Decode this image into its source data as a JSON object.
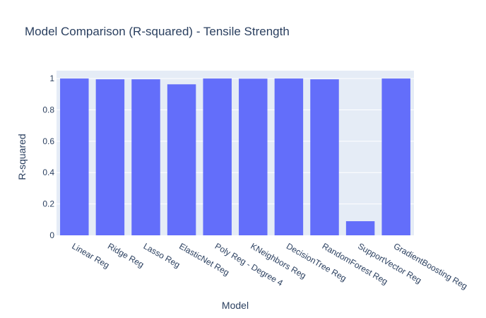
{
  "chart_data": {
    "type": "bar",
    "title": "Model Comparison (R-squared) - Tensile Strength",
    "xlabel": "Model",
    "ylabel": "R-squared",
    "categories": [
      "Linear Reg",
      "Ridge Reg",
      "Lasso Reg",
      "ElasticNet Reg",
      "Poly Reg - Degree 4",
      "KNeighbors Reg",
      "DecisionTree Reg",
      "RandomForest Reg",
      "SupportVector Reg",
      "GradientBoosting Reg"
    ],
    "values": [
      1.0,
      0.995,
      0.995,
      0.963,
      1.0,
      0.999,
      1.0,
      0.995,
      0.09,
      1.0
    ],
    "ylim": [
      0,
      1.05
    ],
    "yticks": [
      0,
      0.2,
      0.4,
      0.6,
      0.8,
      1
    ],
    "ytick_labels": [
      "0",
      "0.2",
      "0.4",
      "0.6",
      "0.8",
      "1"
    ],
    "grid": true,
    "legend": "none",
    "colors": {
      "bar": "#636efa",
      "plot_background": "#e5ecf6",
      "grid": "#ffffff",
      "text": "#2a3f5f"
    }
  }
}
